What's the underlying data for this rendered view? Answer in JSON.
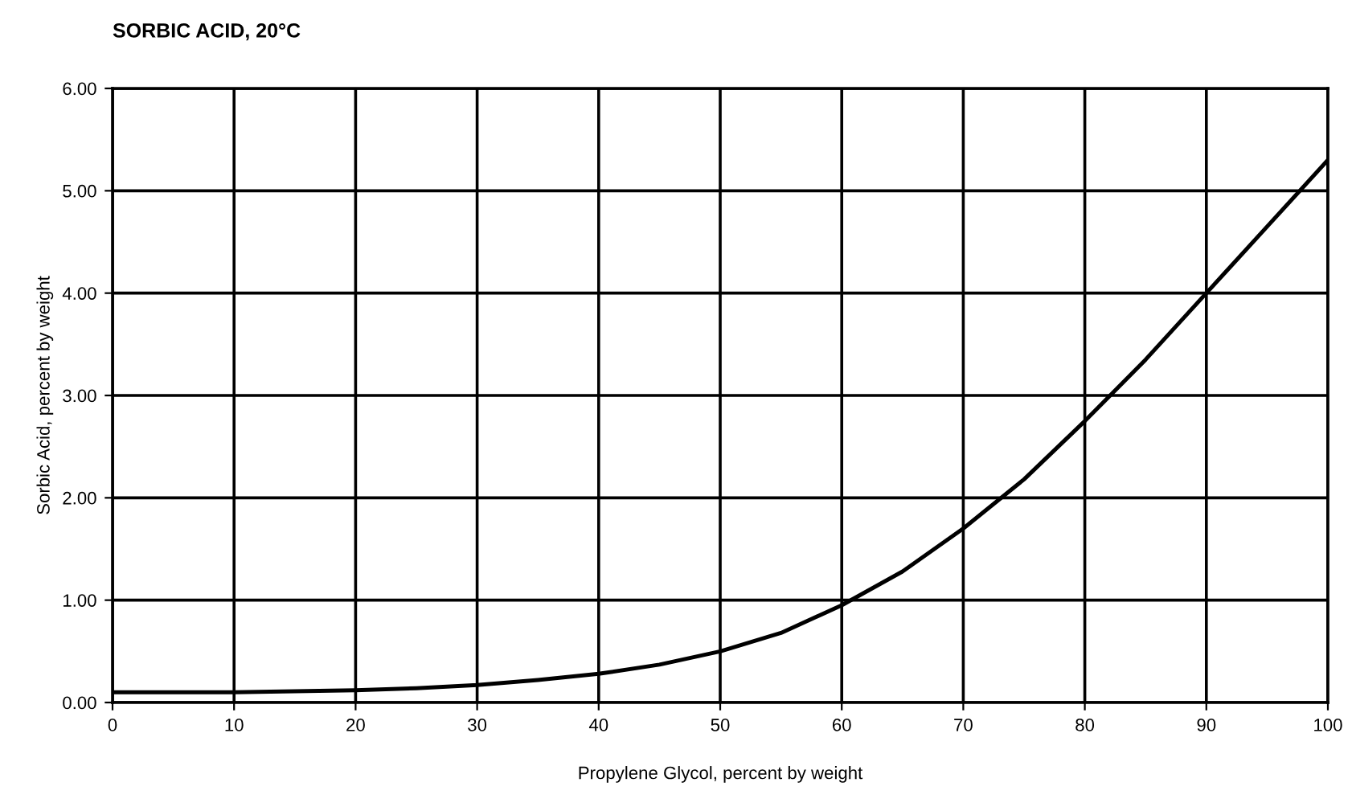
{
  "chart_data": {
    "type": "line",
    "title": "SORBIC ACID, 20°C",
    "xlabel": "Propylene Glycol, percent by weight",
    "ylabel": "Sorbic Acid, percent by weight",
    "x": [
      0,
      5,
      10,
      15,
      20,
      25,
      30,
      35,
      40,
      45,
      50,
      55,
      60,
      65,
      70,
      75,
      80,
      85,
      90,
      95,
      100
    ],
    "series": [
      {
        "color": "#000000",
        "values": [
          0.1,
          0.1,
          0.1,
          0.11,
          0.12,
          0.14,
          0.17,
          0.22,
          0.28,
          0.37,
          0.5,
          0.68,
          0.95,
          1.28,
          1.7,
          2.18,
          2.75,
          3.35,
          4.0,
          4.65,
          5.3
        ]
      }
    ],
    "xlim": [
      0,
      100
    ],
    "ylim": [
      0,
      6
    ],
    "xticks": [
      0,
      10,
      20,
      30,
      40,
      50,
      60,
      70,
      80,
      90,
      100
    ],
    "yticks": [
      {
        "value": 0,
        "label": "0.00"
      },
      {
        "value": 1,
        "label": "1.00"
      },
      {
        "value": 2,
        "label": "2.00"
      },
      {
        "value": 3,
        "label": "3.00"
      },
      {
        "value": 4,
        "label": "4.00"
      },
      {
        "value": 5,
        "label": "5.00"
      },
      {
        "value": 6,
        "label": "6.00"
      }
    ],
    "grid": true,
    "marker": "none",
    "line_style": "solid"
  }
}
